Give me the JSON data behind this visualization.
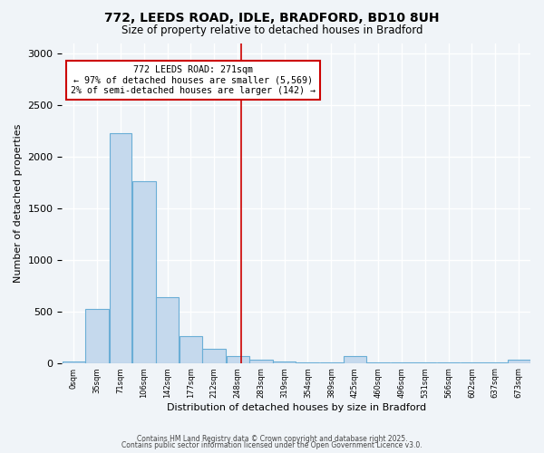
{
  "title": "772, LEEDS ROAD, IDLE, BRADFORD, BD10 8UH",
  "subtitle": "Size of property relative to detached houses in Bradford",
  "xlabel": "Distribution of detached houses by size in Bradford",
  "ylabel": "Number of detached properties",
  "bar_color": "#c5d9ed",
  "bar_edge_color": "#6aaed6",
  "background_color": "#f0f4f8",
  "grid_color": "#ffffff",
  "vline_value": 271,
  "vline_color": "#cc0000",
  "annotation_title": "772 LEEDS ROAD: 271sqm",
  "annotation_line1": "← 97% of detached houses are smaller (5,569)",
  "annotation_line2": "2% of semi-detached houses are larger (142) →",
  "annotation_box_edge": "#cc0000",
  "bins": [
    0,
    35,
    71,
    106,
    142,
    177,
    212,
    248,
    283,
    319,
    354,
    389,
    425,
    460,
    496,
    531,
    566,
    602,
    637,
    673,
    708
  ],
  "bar_heights": [
    15,
    520,
    2230,
    1760,
    640,
    260,
    140,
    65,
    35,
    15,
    8,
    5,
    65,
    5,
    5,
    5,
    5,
    5,
    5,
    35
  ],
  "ylim": [
    0,
    3100
  ],
  "yticks": [
    0,
    500,
    1000,
    1500,
    2000,
    2500,
    3000
  ],
  "footer1": "Contains HM Land Registry data © Crown copyright and database right 2025.",
  "footer2": "Contains public sector information licensed under the Open Government Licence v3.0."
}
